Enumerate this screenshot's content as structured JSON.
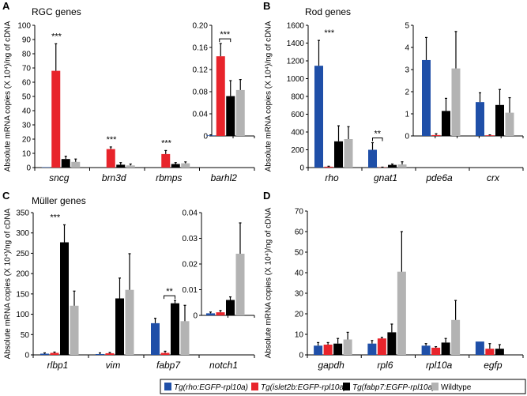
{
  "legend": [
    {
      "label": "Tg(rho:EGFP-rpl10a)",
      "color": "#1f4fa8"
    },
    {
      "label": "Tg(islet2b:EGFP-rpl10a)",
      "color": "#e8242b"
    },
    {
      "label": "Tg(fabp7:EGFP-rpl10a)",
      "color": "#000000"
    },
    {
      "label": "Wildtype",
      "color": "#b3b3b3"
    }
  ],
  "chart_data": [
    {
      "type": "bar",
      "panel": "A",
      "title": "RGC genes",
      "ylabel": "Absolute mRNA copies (X 10⁴)/ng of cDNA",
      "ylim": [
        0,
        100
      ],
      "yticks": [
        "0",
        "10",
        "20",
        "30",
        "40",
        "50",
        "60",
        "70",
        "80",
        "90",
        "100"
      ],
      "inset_ylim": [
        0,
        0.2
      ],
      "inset_yticks": [
        "0",
        "0.04",
        "0.08",
        "0.12",
        "0.16",
        "0.20"
      ],
      "groups": [
        {
          "gene": "sncg",
          "axis": "main",
          "values": [
            0.3,
            68,
            6,
            4
          ],
          "err_top": [
            null,
            87,
            8,
            6
          ],
          "sig": "***",
          "bracket": false
        },
        {
          "gene": "brn3d",
          "axis": "main",
          "values": [
            0,
            13,
            2,
            1.5
          ],
          "err_top": [
            null,
            14.5,
            3.5,
            2.5
          ],
          "sig": "***",
          "bracket": false
        },
        {
          "gene": "rbmps",
          "axis": "main",
          "values": [
            0,
            9.5,
            2.5,
            3
          ],
          "err_top": [
            null,
            12,
            3.5,
            4
          ],
          "sig": "***",
          "bracket": false
        },
        {
          "gene": "barhl2",
          "axis": "inset",
          "values": [
            0.001,
            0.144,
            0.072,
            0.083
          ],
          "err_top": [
            0.002,
            0.167,
            0.1,
            0.102
          ],
          "sig": "***",
          "bracket": true
        }
      ]
    },
    {
      "type": "bar",
      "panel": "B",
      "title": "Rod genes",
      "ylabel": "Absolute mRNA copies (X 10⁴)/ng of cDNA",
      "ylim": [
        0,
        1600
      ],
      "yticks": [
        "0",
        "200",
        "400",
        "600",
        "800",
        "1000",
        "1200",
        "1400",
        "1600"
      ],
      "inset_ylim": [
        0,
        5
      ],
      "inset_yticks": [
        "0",
        "1",
        "2",
        "3",
        "4",
        "5"
      ],
      "groups": [
        {
          "gene": "rho",
          "axis": "main",
          "values": [
            1145,
            10,
            295,
            320
          ],
          "err_top": [
            1430,
            15,
            470,
            460
          ],
          "sig": "***",
          "bracket": false
        },
        {
          "gene": "gnat1",
          "axis": "main",
          "values": [
            200,
            3,
            30,
            35
          ],
          "err_top": [
            280,
            5,
            40,
            65
          ],
          "sig": "**",
          "bracket": true
        },
        {
          "gene": "pde6a",
          "axis": "inset",
          "values": [
            3.43,
            0.04,
            1.13,
            3.05
          ],
          "err_top": [
            4.45,
            0.1,
            1.7,
            4.72
          ],
          "sig": "",
          "bracket": false
        },
        {
          "gene": "crx",
          "axis": "inset",
          "values": [
            1.53,
            0.03,
            1.4,
            1.05
          ],
          "err_top": [
            1.95,
            0.05,
            2.1,
            1.73
          ],
          "sig": "",
          "bracket": false
        }
      ]
    },
    {
      "type": "bar",
      "panel": "C",
      "title": "Müller genes",
      "ylabel": "Absolute mRNA copies (X 10⁴)/ng of cDNA",
      "ylim": [
        0,
        350
      ],
      "yticks": [
        "0",
        "50",
        "100",
        "150",
        "200",
        "250",
        "300",
        "350"
      ],
      "inset_ylim": [
        0,
        0.04
      ],
      "inset_yticks": [
        "0",
        "0.01",
        "0.02",
        "0.03",
        "0.04"
      ],
      "groups": [
        {
          "gene": "rlbp1",
          "axis": "main",
          "values": [
            3,
            5,
            277,
            121
          ],
          "err_top": [
            5,
            7,
            320,
            157
          ],
          "sig": "***",
          "bracket": false
        },
        {
          "gene": "vim",
          "axis": "main",
          "values": [
            2,
            4,
            139,
            160
          ],
          "err_top": [
            5,
            6,
            189,
            249
          ],
          "sig": "",
          "bracket": false
        },
        {
          "gene": "fabp7",
          "axis": "main",
          "values": [
            78,
            5,
            127,
            83
          ],
          "err_top": [
            90,
            9,
            134,
            122
          ],
          "sig": "**",
          "bracket": true
        },
        {
          "gene": "notch1",
          "axis": "inset",
          "values": [
            0.0008,
            0.0012,
            0.006,
            0.024
          ],
          "err_top": [
            0.0013,
            0.0019,
            0.0072,
            0.036
          ],
          "sig": "",
          "bracket": false
        }
      ]
    },
    {
      "type": "bar",
      "panel": "D",
      "title": "",
      "ylabel": "Absolute mRNA copies (X 10⁴)/ng of cDNA",
      "ylim": [
        0,
        70
      ],
      "yticks": [
        "0",
        "10",
        "20",
        "30",
        "40",
        "50",
        "60",
        "70"
      ],
      "groups": [
        {
          "gene": "gapdh",
          "axis": "main",
          "values": [
            4.5,
            5,
            5.5,
            7.5
          ],
          "err_top": [
            6,
            6,
            8,
            11
          ],
          "sig": "",
          "bracket": false
        },
        {
          "gene": "rpl6",
          "axis": "main",
          "values": [
            5.5,
            8,
            11,
            40.5
          ],
          "err_top": [
            7,
            8.5,
            15,
            60
          ],
          "sig": "",
          "bracket": false
        },
        {
          "gene": "rpl10a",
          "axis": "main",
          "values": [
            4.5,
            3.5,
            6,
            17
          ],
          "err_top": [
            5.5,
            4,
            8,
            26.5
          ],
          "sig": "",
          "bracket": false
        },
        {
          "gene": "egfp",
          "axis": "main",
          "values": [
            6.5,
            3,
            3,
            0
          ],
          "err_top": [
            null,
            5.5,
            5,
            null
          ],
          "sig": "",
          "bracket": false
        }
      ]
    }
  ]
}
